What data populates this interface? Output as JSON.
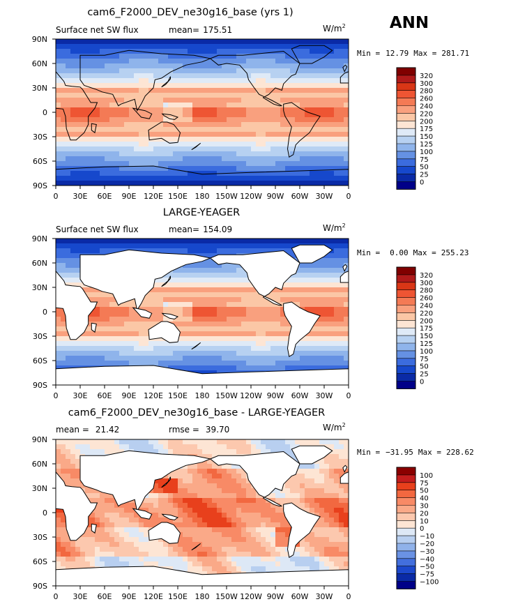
{
  "season": "ANN",
  "chart_data": [
    {
      "type": "heatmap",
      "title": "cam6_F2000_DEV_ne30g16_base (yrs 1)",
      "left_label": "Surface net SW flux",
      "mean_label": "mean=",
      "mean_value": "175.51",
      "units": "W/m",
      "units_sup": "2",
      "min_label": "Min =",
      "min_value": "12.79",
      "max_label": "Max =",
      "max_value": "281.71",
      "field": "model",
      "ylabels": [
        "90N",
        "60N",
        "30N",
        "0",
        "30S",
        "60S",
        "90S"
      ],
      "xlabels": [
        "0",
        "30E",
        "60E",
        "90E",
        "120E",
        "150E",
        "180",
        "150W",
        "120W",
        "90W",
        "60W",
        "30W",
        "0"
      ],
      "colorbar": {
        "levels": [
          "320",
          "300",
          "280",
          "260",
          "240",
          "220",
          "200",
          "175",
          "150",
          "125",
          "100",
          "75",
          "50",
          "25",
          "0"
        ],
        "colors": [
          "#800000",
          "#b01a1a",
          "#d93616",
          "#ee5533",
          "#f47a55",
          "#f9a07e",
          "#fbc7a6",
          "#fde5d4",
          "#dfeaf7",
          "#b7d1f1",
          "#8fb4eb",
          "#6591e3",
          "#3b6cde",
          "#1648cc",
          "#0a2aa6",
          "#000088"
        ]
      }
    },
    {
      "type": "heatmap",
      "title": "LARGE-YEAGER",
      "left_label": "Surface net SW flux",
      "mean_label": "mean=",
      "mean_value": "154.09",
      "units": "W/m",
      "units_sup": "2",
      "min_label": "Min =",
      "min_value": "0.00",
      "max_label": "Max =",
      "max_value": "255.23",
      "field": "obs",
      "ylabels": [
        "90N",
        "60N",
        "30N",
        "0",
        "30S",
        "60S",
        "90S"
      ],
      "xlabels": [
        "0",
        "30E",
        "60E",
        "90E",
        "120E",
        "150E",
        "180",
        "150W",
        "120W",
        "90W",
        "60W",
        "30W",
        "0"
      ],
      "colorbar": {
        "levels": [
          "320",
          "300",
          "280",
          "260",
          "240",
          "220",
          "200",
          "175",
          "150",
          "125",
          "100",
          "75",
          "50",
          "25",
          "0"
        ],
        "colors": [
          "#800000",
          "#b01a1a",
          "#d93616",
          "#ee5533",
          "#f47a55",
          "#f9a07e",
          "#fbc7a6",
          "#fde5d4",
          "#dfeaf7",
          "#b7d1f1",
          "#8fb4eb",
          "#6591e3",
          "#3b6cde",
          "#1648cc",
          "#0a2aa6",
          "#000088"
        ]
      }
    },
    {
      "type": "heatmap",
      "title": "cam6_F2000_DEV_ne30g16_base - LARGE-YEAGER",
      "left_label": "mean =",
      "left_value": "21.42",
      "mean_label": "rmse =",
      "mean_value": "39.70",
      "units": "W/m",
      "units_sup": "2",
      "min_label": "Min =",
      "min_value": "−31.95",
      "max_label": "Max =",
      "max_value": "228.62",
      "field": "diff",
      "ylabels": [
        "90N",
        "60N",
        "30N",
        "0",
        "30S",
        "60S",
        "90S"
      ],
      "xlabels": [
        "0",
        "30E",
        "60E",
        "90E",
        "120E",
        "150E",
        "180",
        "150W",
        "120W",
        "90W",
        "60W",
        "30W",
        "0"
      ],
      "colorbar": {
        "levels": [
          "100",
          "75",
          "50",
          "40",
          "30",
          "20",
          "10",
          "0",
          "−10",
          "−20",
          "−30",
          "−40",
          "−50",
          "−75",
          "−100"
        ],
        "colors": [
          "#8b0000",
          "#c41d1d",
          "#e8401c",
          "#f26840",
          "#f88a66",
          "#faa988",
          "#fcc8ae",
          "#fde5d4",
          "#dde8f6",
          "#b8cff0",
          "#90b2ea",
          "#6a92e4",
          "#436fdd",
          "#1c48cc",
          "#0a2aa6",
          "#000088"
        ]
      }
    }
  ]
}
